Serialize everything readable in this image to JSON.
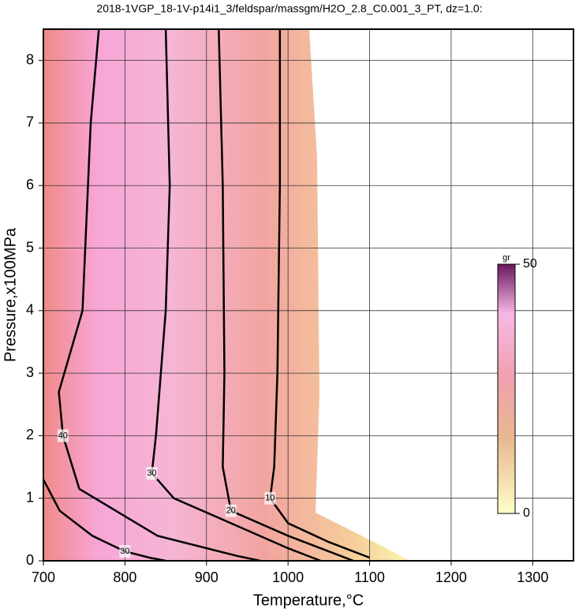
{
  "chart_data": {
    "type": "contour",
    "title": "2018-1VGP_18-1V-p14i1_3/feldspar/massgm/H2O_2.8_C0.001_3_PT, dz=1.0:",
    "x_label": "Temperature,°C",
    "y_label": "Pressure,x100MPa",
    "xlim": [
      700,
      1350
    ],
    "xticks": [
      700,
      800,
      900,
      1000,
      1100,
      1200,
      1300
    ],
    "ylim": [
      0,
      8.5
    ],
    "yticks": [
      0,
      1,
      2,
      3,
      4,
      5,
      6,
      7,
      8
    ],
    "grid": true,
    "color": "#000000",
    "contours": [
      {
        "level": 10,
        "x": [
          990,
          990,
          987,
          983,
          978,
          1000,
          1050,
          1100
        ],
        "y": [
          8.5,
          6,
          3,
          1.5,
          1.0,
          0.6,
          0.3,
          0.05
        ]
      },
      {
        "level": 20,
        "x": [
          915,
          920,
          922,
          920,
          930,
          1000,
          1060,
          1080
        ],
        "y": [
          8.5,
          6,
          3,
          1.5,
          0.8,
          0.4,
          0.1,
          0
        ]
      },
      {
        "level": 30,
        "x": [
          850,
          855,
          850,
          838,
          833,
          860,
          930,
          1000,
          1040
        ],
        "y": [
          8.5,
          6,
          4,
          2.0,
          1.4,
          1.0,
          0.6,
          0.2,
          0
        ]
      },
      {
        "level": 40,
        "x": [
          768,
          758,
          748,
          719,
          724,
          744,
          840,
          937,
          966
        ],
        "y": [
          8.5,
          7,
          4,
          2.7,
          2.0,
          1.15,
          0.4,
          0.08,
          0
        ]
      },
      {
        "level": 30,
        "x": [
          700,
          720,
          760,
          800,
          830,
          850
        ],
        "y": [
          1.3,
          0.8,
          0.4,
          0.15,
          0.05,
          0
        ]
      }
    ],
    "colorbar": {
      "label": "gr",
      "lim": [
        0,
        50
      ],
      "ticks": [
        0,
        50
      ]
    }
  }
}
